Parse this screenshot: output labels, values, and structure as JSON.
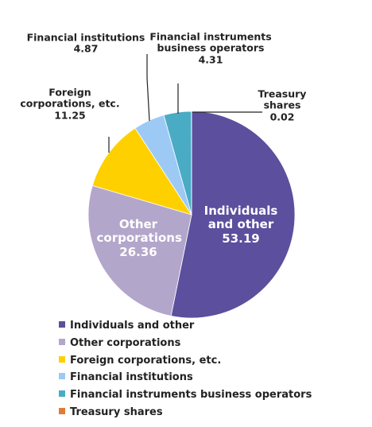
{
  "chart_data": {
    "type": "pie",
    "categories": [
      "Individuals and other",
      "Other corporations",
      "Foreign corporations, etc.",
      "Financial institutions",
      "Financial instruments business operators",
      "Treasury shares"
    ],
    "values": [
      53.19,
      26.36,
      11.25,
      4.87,
      4.31,
      0.02
    ],
    "colors": [
      "#5b4f9e",
      "#b3a6cb",
      "#ffd000",
      "#9ccaf5",
      "#4aabc5",
      "#e07b39"
    ]
  }
}
